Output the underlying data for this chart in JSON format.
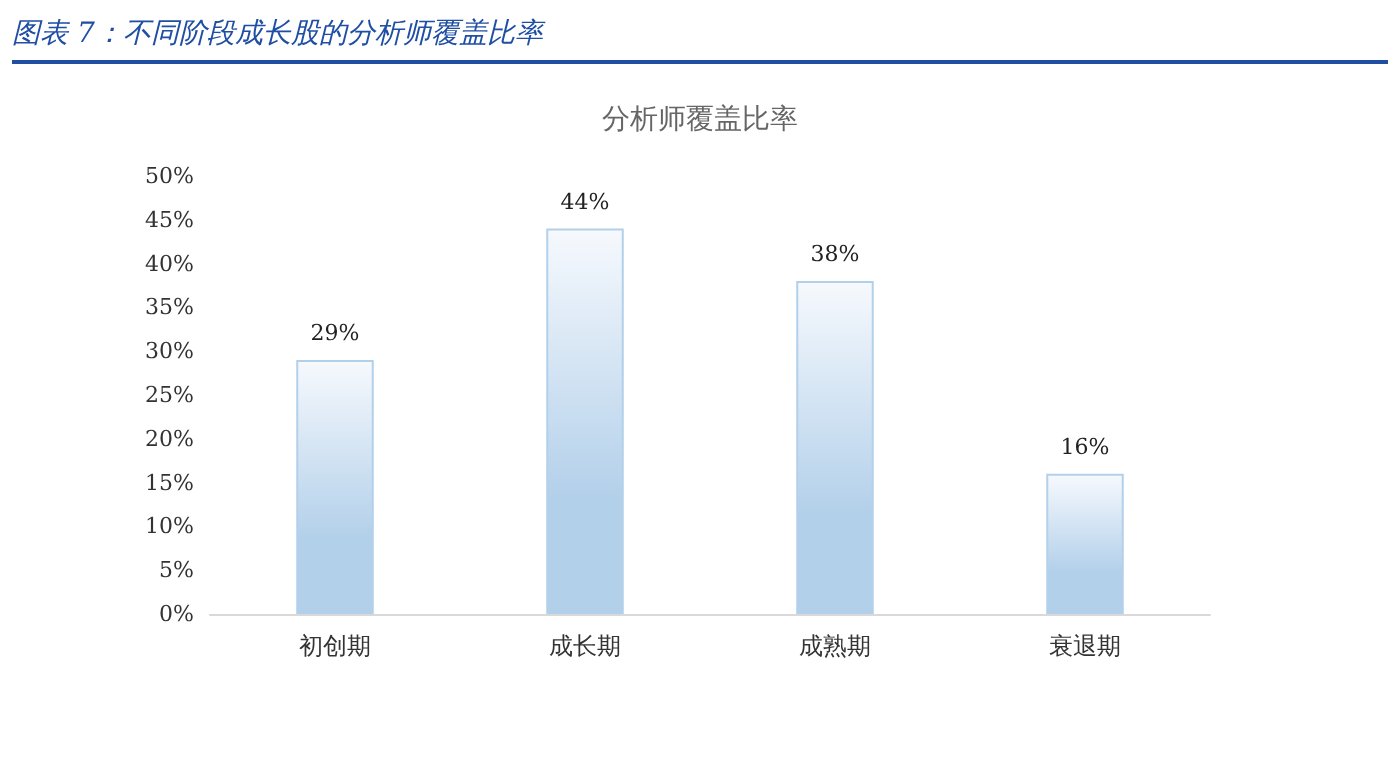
{
  "chart_data": {
    "type": "bar",
    "title": "图表 7：不同阶段成长股的分析师覆盖比率",
    "subtitle": "分析师覆盖比率",
    "categories": [
      "初创期",
      "成长期",
      "成熟期",
      "衰退期"
    ],
    "values": [
      29,
      44,
      38,
      16
    ],
    "value_labels": [
      "29%",
      "44%",
      "38%",
      "16%"
    ],
    "color": "#b3d0ea",
    "ylim": [
      0,
      50
    ],
    "yticks": [
      {
        "value": 0,
        "label": "0%"
      },
      {
        "value": 5,
        "label": "5%"
      },
      {
        "value": 10,
        "label": "10%"
      },
      {
        "value": 15,
        "label": "15%"
      },
      {
        "value": 20,
        "label": "20%"
      },
      {
        "value": 25,
        "label": "25%"
      },
      {
        "value": 30,
        "label": "30%"
      },
      {
        "value": 35,
        "label": "35%"
      },
      {
        "value": 40,
        "label": "40%"
      },
      {
        "value": 45,
        "label": "45%"
      },
      {
        "value": 50,
        "label": "50%"
      }
    ],
    "grid": false
  }
}
